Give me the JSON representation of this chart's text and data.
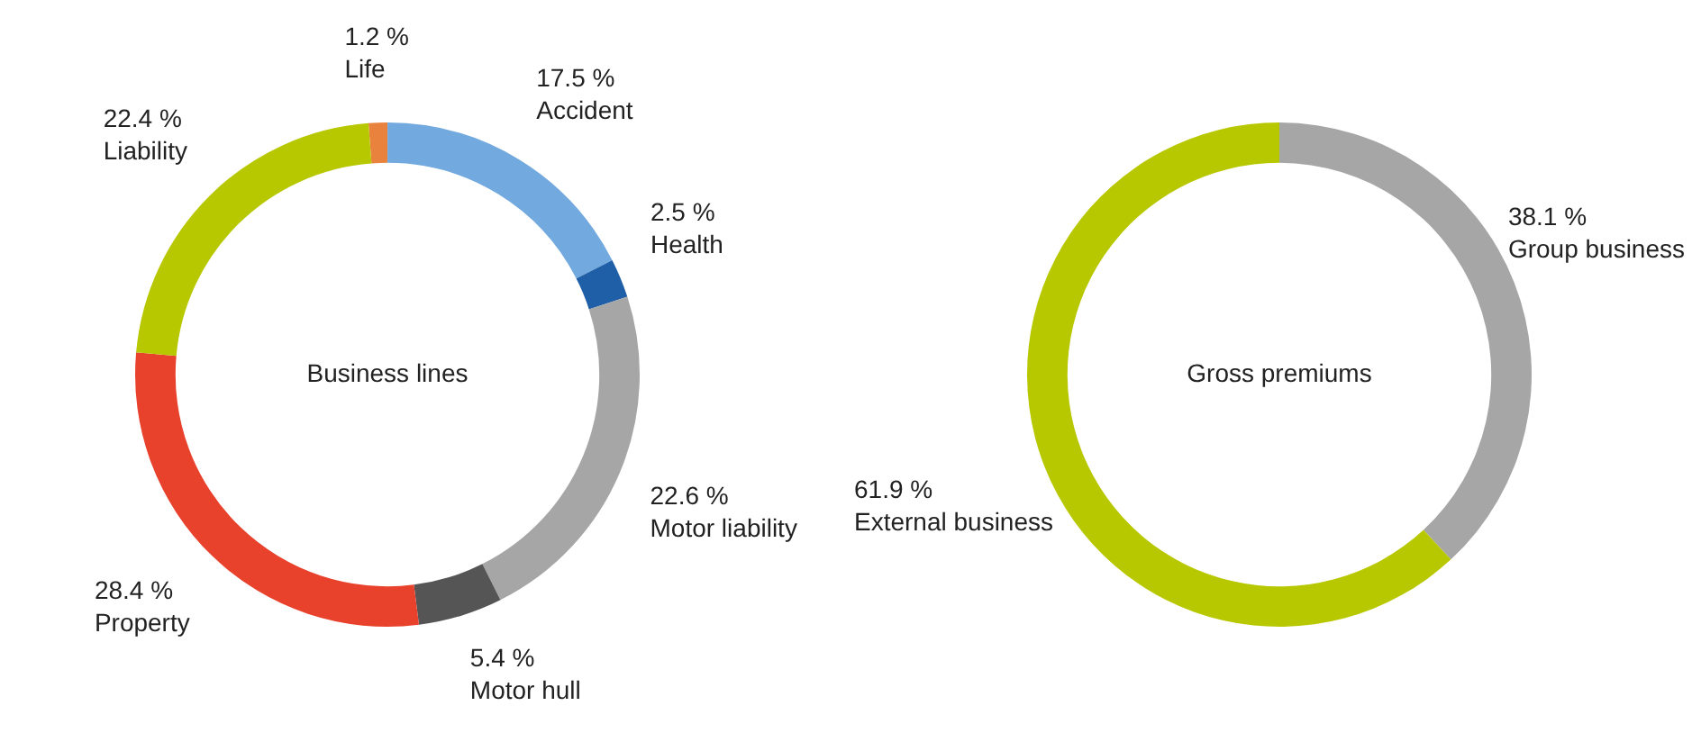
{
  "chart_data": [
    {
      "type": "donut",
      "title": "Business lines",
      "categories": [
        "Life",
        "Accident",
        "Health",
        "Motor liability",
        "Motor hull",
        "Property",
        "Liability"
      ],
      "values": [
        1.2,
        17.5,
        2.5,
        22.6,
        5.4,
        28.4,
        22.4
      ],
      "value_labels": [
        "1.2 %",
        "17.5 %",
        "2.5 %",
        "22.6 %",
        "5.4 %",
        "28.4 %",
        "22.4 %"
      ],
      "colors": [
        "#e8823c",
        "#72a9de",
        "#1f5fa8",
        "#a6a6a6",
        "#555555",
        "#e8412c",
        "#b8c800"
      ],
      "legend": false
    },
    {
      "type": "donut",
      "title": "Gross premiums",
      "categories": [
        "Group business",
        "External business"
      ],
      "values": [
        38.1,
        61.9
      ],
      "value_labels": [
        "38.1 %",
        "61.9 %"
      ],
      "colors": [
        "#a6a6a6",
        "#b8c800"
      ],
      "legend": false
    }
  ]
}
